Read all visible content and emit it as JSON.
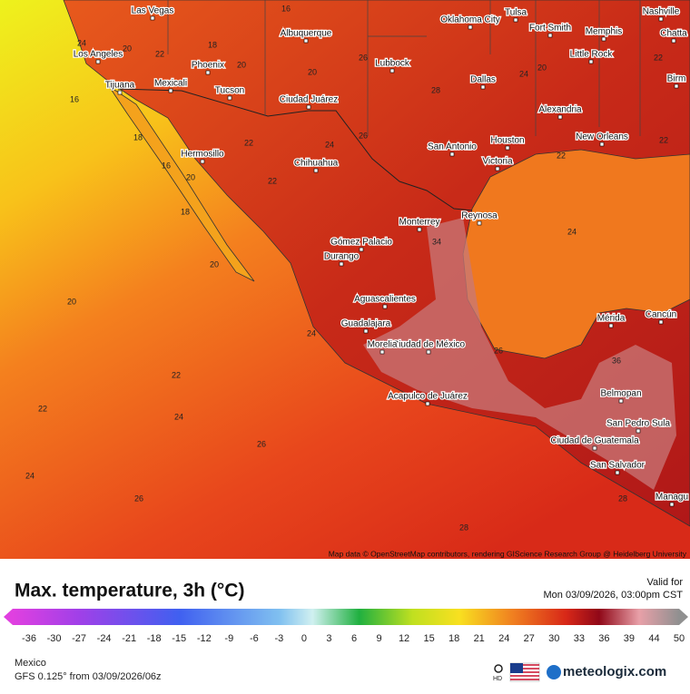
{
  "map": {
    "attribution": "Map data © OpenStreetMap contributors, rendering GIScience Research Group @ Heidelberg University",
    "cities": [
      "Las Vegas",
      "Oklahoma City",
      "Tulsa",
      "Nashville",
      "Albuquerque",
      "Fort Smith",
      "Memphis",
      "Chatta",
      "Los Angeles",
      "Lubbock",
      "Little Rock",
      "Phoenix",
      "Mexicali",
      "Tijuana",
      "Tucson",
      "Dallas",
      "Birm",
      "Ciudad Juárez",
      "Alexandria",
      "Hermosillo",
      "San Antonio",
      "Houston",
      "New Orleans",
      "Chihuahua",
      "Victoria",
      "Monterrey",
      "Reynosa",
      "Gómez Palacio",
      "Durango",
      "Aguascalientes",
      "Mérida",
      "Cancún",
      "Guadalajara",
      "Ciudad de México",
      "Morelia",
      "Acapulco de Juárez",
      "Belmopan",
      "San Pedro Sula",
      "Ciudad de Guatemala",
      "San Salvador",
      "Managu"
    ],
    "contour_labels": [
      16,
      24,
      20,
      22,
      18,
      20,
      16,
      20,
      26,
      28,
      24,
      20,
      22,
      18,
      16,
      20,
      18,
      22,
      24,
      26,
      22,
      20,
      20,
      24,
      22,
      22,
      24,
      26,
      24,
      26,
      28,
      24,
      26,
      36,
      28,
      22,
      22,
      34
    ]
  },
  "header": {
    "title": "Max. temperature, 3h (°C)",
    "valid_label": "Valid for",
    "valid_time": "Mon 03/09/2026, 03:00pm CST"
  },
  "colorbar": {
    "ticks": [
      -36,
      -30,
      -27,
      -24,
      -21,
      -18,
      -15,
      -12,
      -9,
      -6,
      -3,
      0,
      3,
      6,
      9,
      12,
      15,
      18,
      21,
      24,
      27,
      30,
      33,
      36,
      39,
      44,
      50
    ]
  },
  "footer": {
    "region": "Mexico",
    "model": "GFS 0.125° from  03/09/2026/06z",
    "hd": "HD",
    "brand": "meteologix.com"
  }
}
